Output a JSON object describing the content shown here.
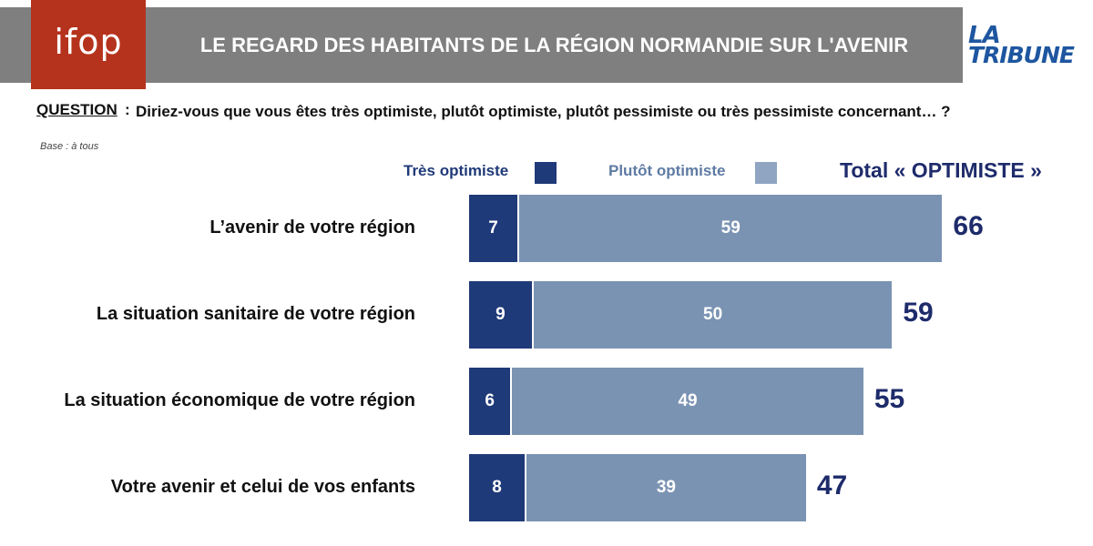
{
  "header": {
    "logo_text": "ifop",
    "title": "LE REGARD DES HABITANTS DE LA RÉGION NORMANDIE SUR L'AVENIR",
    "partner_logo": {
      "line1": "LA",
      "line2": "TRIBUNE"
    }
  },
  "question": {
    "label": "QUESTION",
    "separator": ":",
    "text": "Diriez-vous que vous êtes très optimiste, plutôt optimiste, plutôt pessimiste ou très pessimiste concernant… ?",
    "base": "Base : à tous"
  },
  "colors": {
    "very_optimistic": "#1f3a78",
    "rather_optimistic": "#7b93b3",
    "total": "#1e2b6b",
    "header_band": "#7f7f7f",
    "ifop_red": "#b5321c"
  },
  "chart_data": {
    "type": "bar",
    "orientation": "horizontal",
    "stacked": true,
    "categories": [
      "L’avenir de votre région",
      "La situation sanitaire de votre région",
      "La situation économique de votre région",
      "Votre avenir et celui de vos enfants"
    ],
    "series": [
      {
        "name": "Très optimiste",
        "values": [
          7,
          9,
          6,
          8
        ]
      },
      {
        "name": "Plutôt optimiste",
        "values": [
          59,
          50,
          49,
          39
        ]
      }
    ],
    "totals_label": "Total « OPTIMISTE »",
    "totals": [
      66,
      59,
      55,
      47
    ],
    "legend": "top",
    "grid": false
  }
}
